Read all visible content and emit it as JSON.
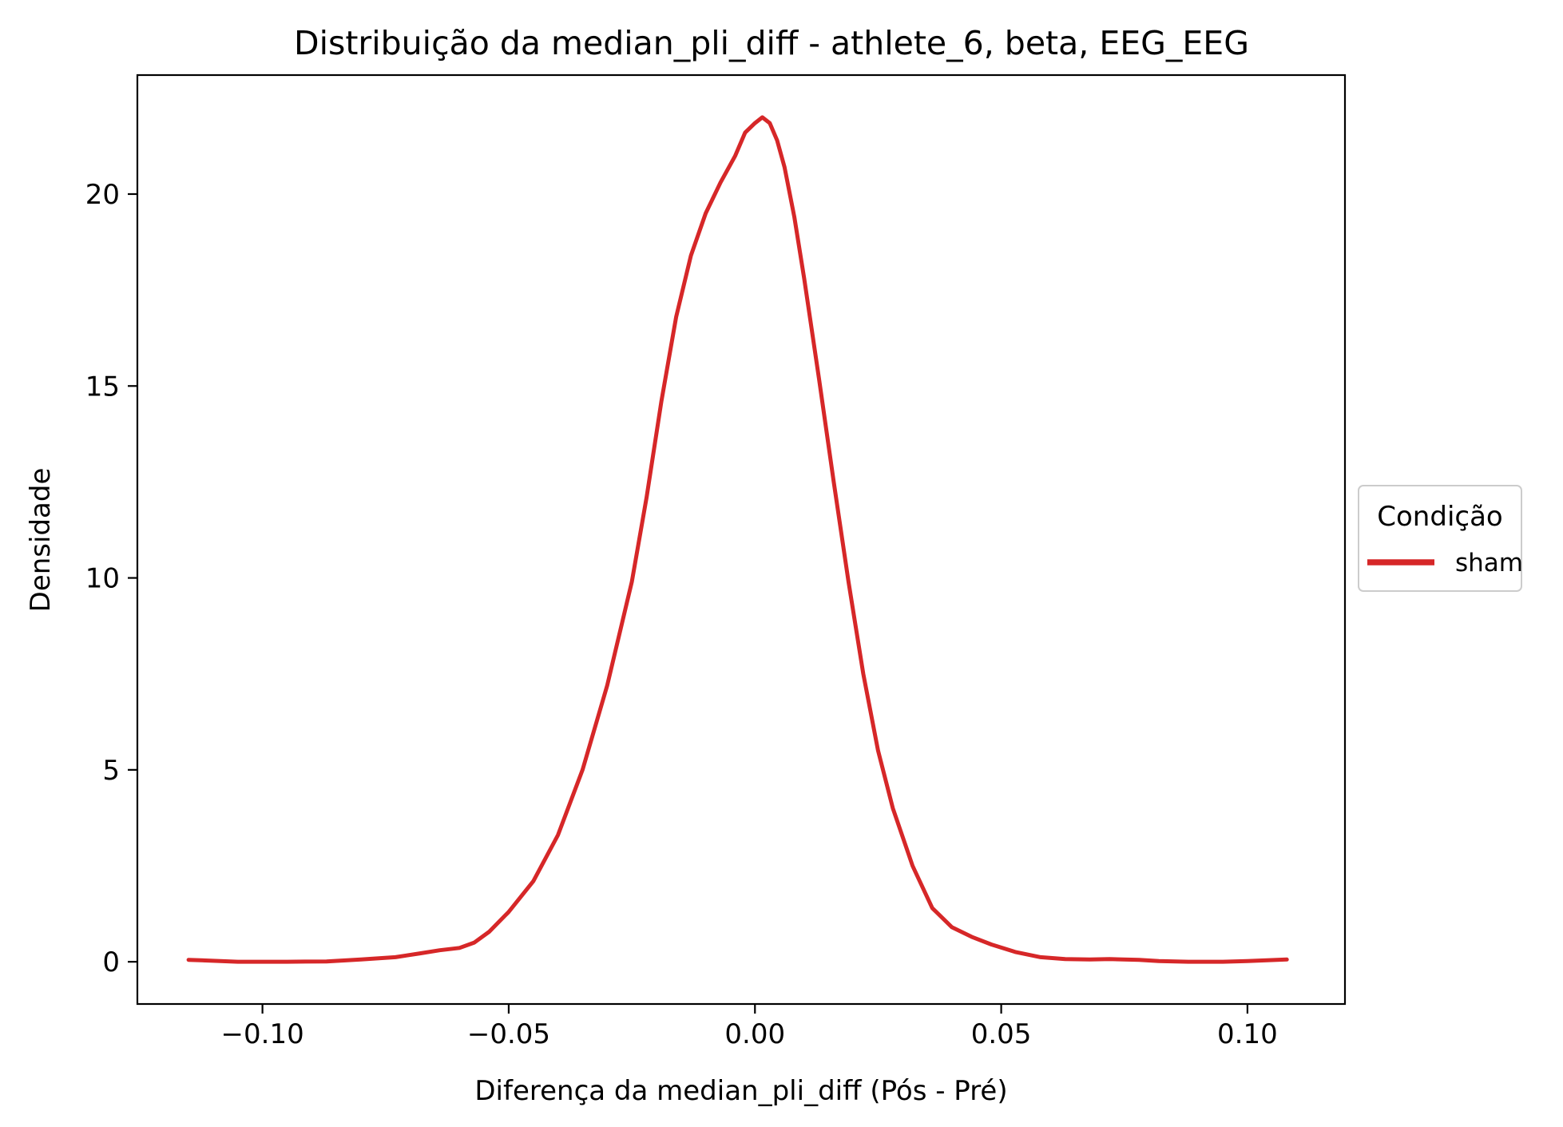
{
  "chart_data": {
    "type": "line",
    "title": "Distribuição da median_pli_diff - athlete_6, beta, EEG_EEG",
    "xlabel": "Diferença da median_pli_diff (Pós - Pré)",
    "ylabel": "Densidade",
    "xlim": [
      -0.1254,
      0.1198
    ],
    "ylim": [
      -1.1,
      23.1
    ],
    "grid": false,
    "x_ticks": [
      -0.1,
      -0.05,
      0.0,
      0.05,
      0.1
    ],
    "x_tick_labels": [
      "−0.10",
      "−0.05",
      "0.00",
      "0.05",
      "0.10"
    ],
    "y_ticks": [
      0,
      5,
      10,
      15,
      20
    ],
    "y_tick_labels": [
      "0",
      "5",
      "10",
      "15",
      "20"
    ],
    "legend": {
      "title": "Condição",
      "placement": "center-right-outside"
    },
    "series": [
      {
        "name": "sham",
        "color": "#d62728",
        "x": [
          -0.115,
          -0.105,
          -0.095,
          -0.087,
          -0.08,
          -0.073,
          -0.068,
          -0.064,
          -0.06,
          -0.057,
          -0.054,
          -0.05,
          -0.045,
          -0.04,
          -0.035,
          -0.03,
          -0.025,
          -0.022,
          -0.019,
          -0.016,
          -0.013,
          -0.01,
          -0.007,
          -0.004,
          -0.002,
          0.0,
          0.0015,
          0.003,
          0.0045,
          0.006,
          0.008,
          0.01,
          0.013,
          0.016,
          0.019,
          0.022,
          0.025,
          0.028,
          0.032,
          0.036,
          0.04,
          0.044,
          0.048,
          0.053,
          0.058,
          0.063,
          0.068,
          0.072,
          0.078,
          0.082,
          0.088,
          0.095,
          0.1,
          0.108
        ],
        "values": [
          0.05,
          0.0,
          0.0,
          0.01,
          0.06,
          0.12,
          0.22,
          0.3,
          0.36,
          0.5,
          0.78,
          1.3,
          2.1,
          3.3,
          5.0,
          7.2,
          9.9,
          12.1,
          14.6,
          16.8,
          18.4,
          19.5,
          20.3,
          21.0,
          21.6,
          21.85,
          22.0,
          21.85,
          21.4,
          20.7,
          19.4,
          17.8,
          15.2,
          12.5,
          9.9,
          7.5,
          5.5,
          4.0,
          2.5,
          1.4,
          0.9,
          0.65,
          0.45,
          0.25,
          0.12,
          0.07,
          0.06,
          0.07,
          0.05,
          0.02,
          0.0,
          0.0,
          0.02,
          0.06
        ]
      }
    ]
  }
}
